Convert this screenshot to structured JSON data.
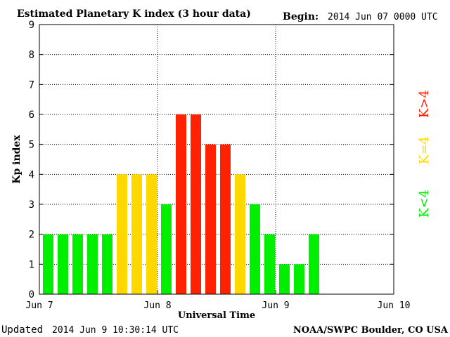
{
  "header": {
    "title": "Estimated Planetary K index (3 hour data)",
    "begin_label": "Begin:",
    "begin_value": "2014 Jun 07 0000 UTC"
  },
  "footer": {
    "updated_label": "Updated",
    "updated_value": "2014 Jun  9 10:30:14 UTC",
    "credit": "NOAA/SWPC Boulder, CO USA"
  },
  "chart_data": {
    "type": "bar",
    "ylabel": "Kp index",
    "xlabel": "Universal Time",
    "ylim": [
      0,
      9
    ],
    "y_ticks": [
      "0",
      "1",
      "2",
      "3",
      "4",
      "5",
      "6",
      "7",
      "8",
      "9"
    ],
    "x_ticks": [
      "Jun 7",
      "Jun 8",
      "Jun 9",
      "Jun 10"
    ],
    "slots_total": 24,
    "grid": "dotted",
    "values": [
      2,
      2,
      2,
      2,
      2,
      4,
      4,
      4,
      3,
      6,
      6,
      5,
      5,
      4,
      3,
      2,
      1,
      1,
      2
    ],
    "thresholds": {
      "low_max": 3,
      "storm_min": 5
    },
    "colors": {
      "low": "#00ee00",
      "mid": "#ffd800",
      "high": "#ff2200"
    },
    "legend": [
      {
        "text": "K<4",
        "color": "#00ee00"
      },
      {
        "text": "K=4",
        "color": "#ffd800"
      },
      {
        "text": "K>4",
        "color": "#ff2200"
      }
    ]
  }
}
